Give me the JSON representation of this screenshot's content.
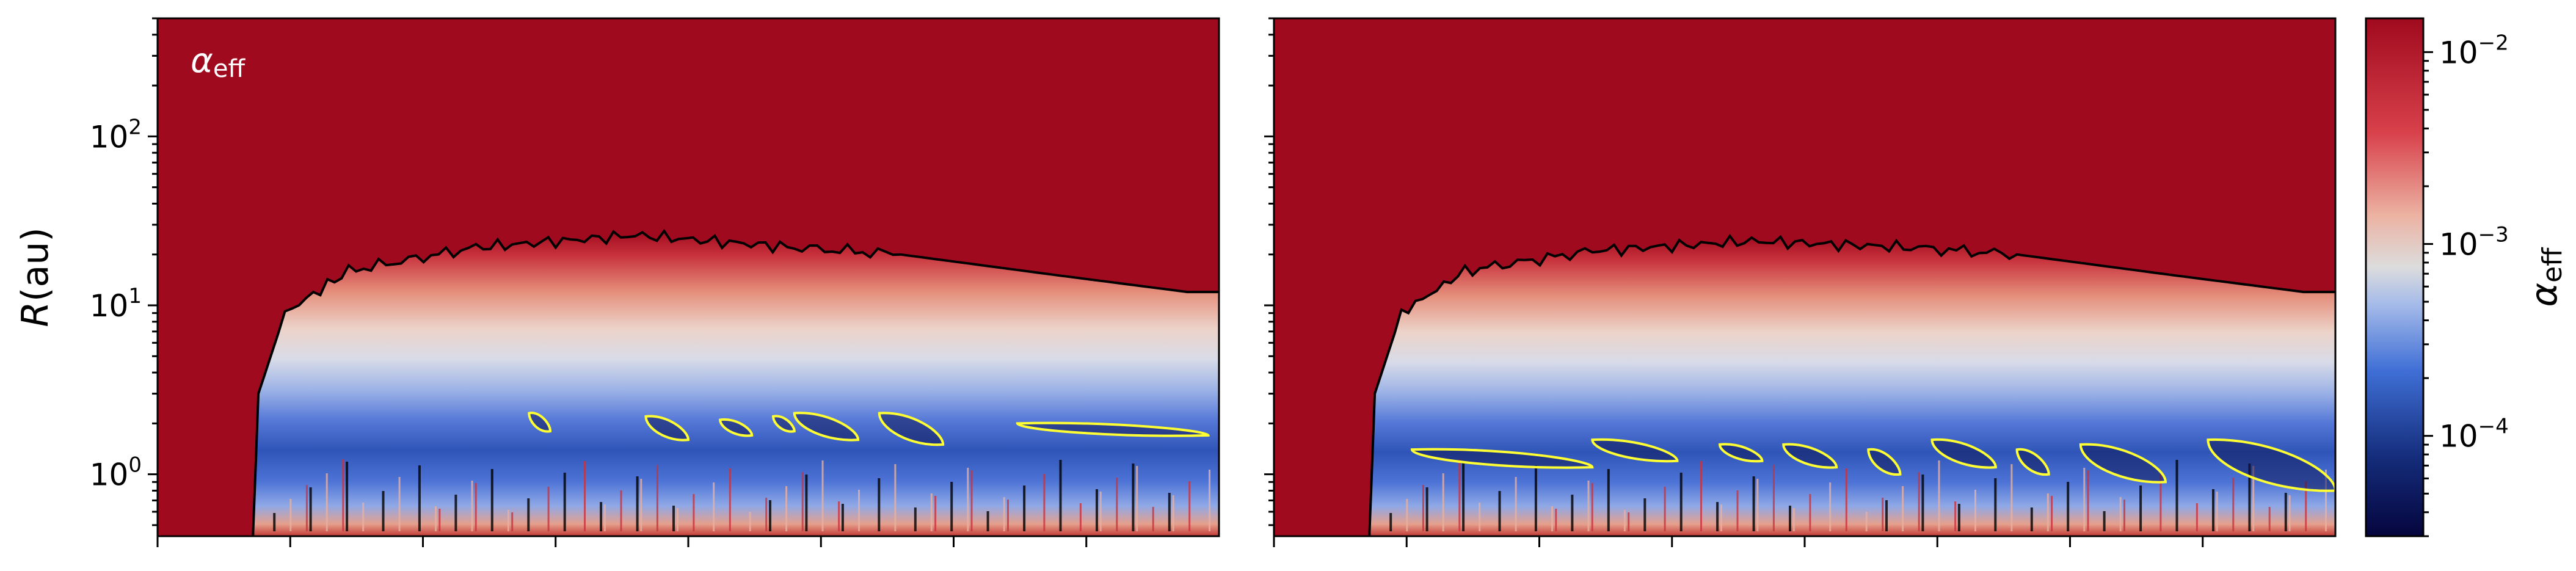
{
  "figure": {
    "panel_label": "α",
    "panel_label_sub": "eff",
    "ylabel_italic": "R",
    "ylabel_unit": "(au)"
  },
  "colorbar": {
    "label": "α",
    "label_sub": "eff",
    "scale": "log",
    "range": [
      3e-05,
      0.015
    ],
    "colormap": "blue-white-red (seismic-like)",
    "ticks": [
      {
        "value": 0.0001,
        "mantissa": "10",
        "exponent": "−4"
      },
      {
        "value": 0.001,
        "mantissa": "10",
        "exponent": "−3"
      },
      {
        "value": 0.01,
        "mantissa": "10",
        "exponent": "−2"
      }
    ],
    "colors": {
      "low": "#05053d",
      "mid_low": "#3f6fd6",
      "middle": "#dcdcdc",
      "mid_high": "#d8404a",
      "high": "#a00a1e"
    }
  },
  "contours": {
    "boundary_color": "#000000",
    "dead_zone_color": "#ffff33"
  },
  "chart_data": [
    {
      "type": "heatmap",
      "title": "",
      "xlabel": "",
      "ylabel": "R(au)",
      "yscale": "log",
      "ylim": [
        0.43,
        500
      ],
      "y_ticks": [
        {
          "value": 1,
          "mantissa": "10",
          "exponent": "0"
        },
        {
          "value": 10,
          "mantissa": "10",
          "exponent": "1"
        },
        {
          "value": 100,
          "mantissa": "10",
          "exponent": "2"
        }
      ],
      "x_tick_labels_shown": false,
      "x_major_ticks": 8,
      "disk_onset_fraction": 0.09,
      "outer_boundary_au": [
        [
          0.09,
          0.45
        ],
        [
          0.095,
          3
        ],
        [
          0.12,
          9
        ],
        [
          0.18,
          16
        ],
        [
          0.3,
          22
        ],
        [
          0.45,
          26
        ],
        [
          0.6,
          22
        ],
        [
          0.7,
          20
        ],
        [
          0.85,
          15
        ],
        [
          0.97,
          12
        ],
        [
          1.0,
          12
        ]
      ],
      "dead_zone_contours": [
        {
          "x": [
            0.35,
            0.37
          ],
          "r_au": [
            1.8,
            2.3
          ]
        },
        {
          "x": [
            0.46,
            0.5
          ],
          "r_au": [
            1.6,
            2.2
          ]
        },
        {
          "x": [
            0.53,
            0.56
          ],
          "r_au": [
            1.7,
            2.1
          ]
        },
        {
          "x": [
            0.58,
            0.6
          ],
          "r_au": [
            1.8,
            2.2
          ]
        },
        {
          "x": [
            0.6,
            0.66
          ],
          "r_au": [
            1.6,
            2.3
          ]
        },
        {
          "x": [
            0.68,
            0.74
          ],
          "r_au": [
            1.5,
            2.3
          ]
        },
        {
          "x": [
            0.81,
            0.99
          ],
          "r_au": [
            1.7,
            2.0
          ]
        }
      ]
    },
    {
      "type": "heatmap",
      "title": "",
      "xlabel": "",
      "ylabel": "",
      "yscale": "log",
      "ylim": [
        0.43,
        500
      ],
      "x_tick_labels_shown": false,
      "x_major_ticks": 8,
      "disk_onset_fraction": 0.09,
      "outer_boundary_au": [
        [
          0.09,
          0.45
        ],
        [
          0.095,
          3
        ],
        [
          0.12,
          9
        ],
        [
          0.18,
          16
        ],
        [
          0.3,
          21
        ],
        [
          0.45,
          24
        ],
        [
          0.6,
          22
        ],
        [
          0.7,
          20
        ],
        [
          0.85,
          15
        ],
        [
          0.97,
          12
        ],
        [
          1.0,
          12
        ]
      ],
      "dead_zone_contours": [
        {
          "x": [
            0.13,
            0.3
          ],
          "r_au": [
            1.1,
            1.4
          ]
        },
        {
          "x": [
            0.3,
            0.38
          ],
          "r_au": [
            1.2,
            1.6
          ]
        },
        {
          "x": [
            0.42,
            0.46
          ],
          "r_au": [
            1.2,
            1.5
          ]
        },
        {
          "x": [
            0.48,
            0.53
          ],
          "r_au": [
            1.1,
            1.5
          ]
        },
        {
          "x": [
            0.56,
            0.59
          ],
          "r_au": [
            1.0,
            1.4
          ]
        },
        {
          "x": [
            0.62,
            0.68
          ],
          "r_au": [
            1.1,
            1.6
          ]
        },
        {
          "x": [
            0.7,
            0.73
          ],
          "r_au": [
            1.0,
            1.4
          ]
        },
        {
          "x": [
            0.76,
            0.84
          ],
          "r_au": [
            0.9,
            1.5
          ]
        },
        {
          "x": [
            0.88,
            1.0
          ],
          "r_au": [
            0.8,
            1.6
          ]
        }
      ]
    }
  ]
}
